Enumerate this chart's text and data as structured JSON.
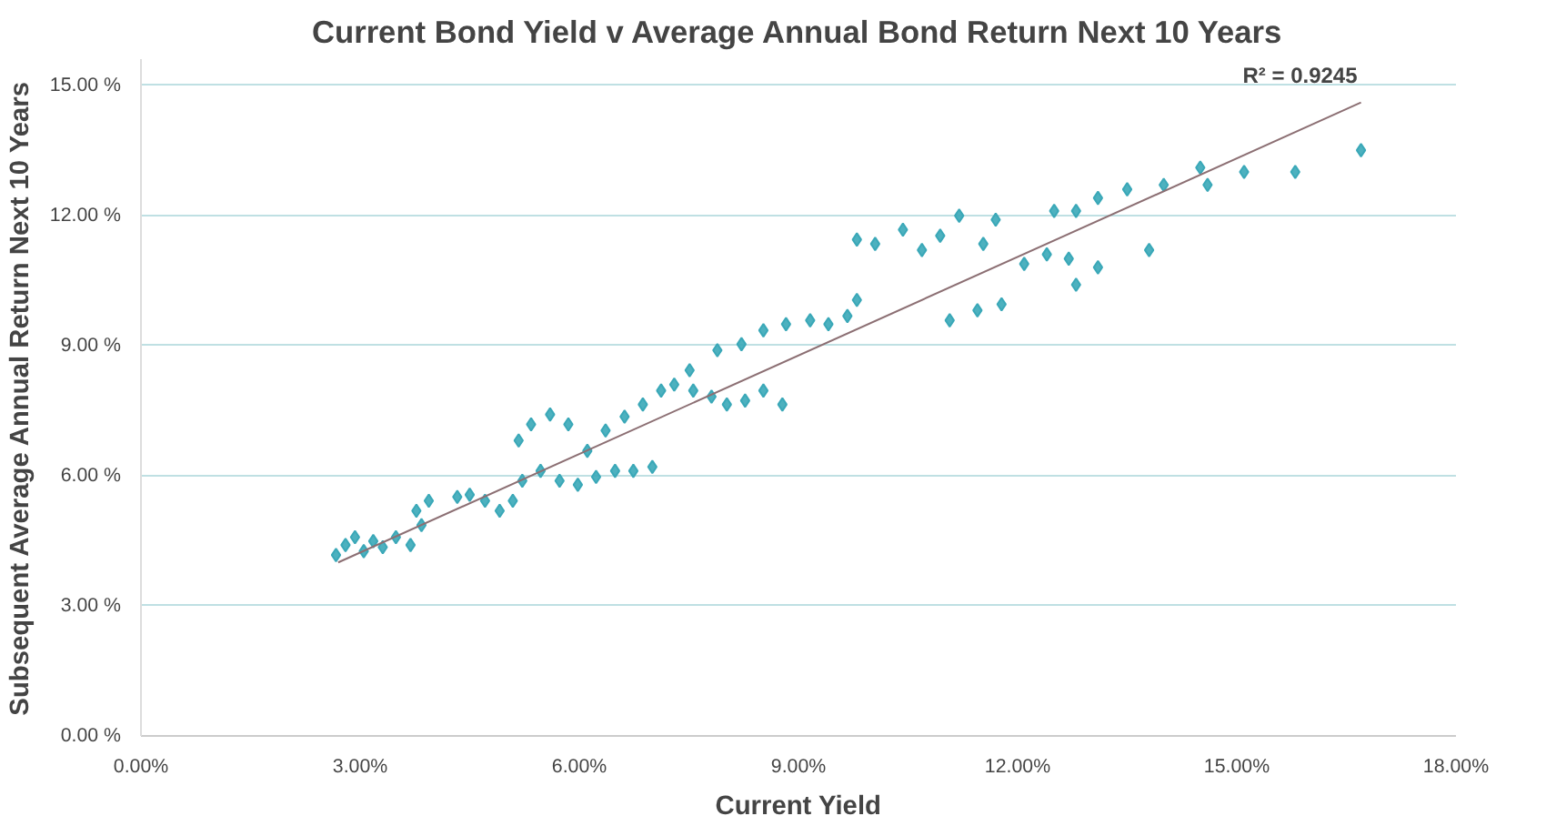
{
  "chart_data": {
    "type": "scatter",
    "title": "Current Bond Yield v Average Annual Bond Return Next 10 Years",
    "xlabel": "Current Yield",
    "ylabel": "Subsequent Average Annual Return Next 10 Years",
    "annotations": [
      {
        "text": "R² = 0.9245",
        "x": 16.7,
        "y": 14.6
      }
    ],
    "xlim": [
      0,
      18
    ],
    "ylim": [
      0,
      15.6
    ],
    "xticks": [
      {
        "value": 0,
        "label": "0.00%"
      },
      {
        "value": 3,
        "label": "3.00%"
      },
      {
        "value": 6,
        "label": "6.00%"
      },
      {
        "value": 9,
        "label": "9.00%"
      },
      {
        "value": 12,
        "label": "12.00%"
      },
      {
        "value": 15,
        "label": "15.00%"
      },
      {
        "value": 18,
        "label": "18.00%"
      }
    ],
    "yticks": [
      {
        "value": 0,
        "label": "0.00 %"
      },
      {
        "value": 3,
        "label": "3.00 %"
      },
      {
        "value": 6,
        "label": "6.00 %"
      },
      {
        "value": 9,
        "label": "9.00 %"
      },
      {
        "value": 12,
        "label": "12.00 %"
      },
      {
        "value": 15,
        "label": "15.00 %"
      }
    ],
    "grid": "y",
    "marker": "diamond",
    "series": [
      {
        "color": "#3aa8b8",
        "x": [
          2.67,
          2.8,
          2.93,
          3.05,
          3.18,
          3.31,
          3.49,
          3.69,
          3.84,
          3.77,
          3.94,
          4.33,
          4.5,
          4.71,
          4.91,
          5.09,
          5.22,
          5.17,
          5.34,
          5.6,
          5.85,
          5.47,
          5.73,
          5.98,
          6.23,
          6.49,
          6.74,
          7.0,
          6.11,
          6.36,
          6.62,
          6.87,
          7.12,
          7.3,
          7.56,
          7.81,
          8.02,
          8.27,
          8.52,
          8.78,
          7.51,
          7.89,
          8.22,
          8.52,
          8.83,
          9.16,
          9.41,
          9.67,
          9.8,
          9.8,
          10.05,
          10.43,
          10.69,
          10.94,
          11.2,
          11.53,
          11.7,
          11.07,
          11.45,
          11.78,
          12.09,
          12.5,
          12.8,
          13.1,
          13.5,
          14.0,
          14.5,
          14.6,
          15.1,
          12.4,
          12.7,
          13.1,
          12.8,
          13.8,
          15.8,
          16.7
        ],
        "values": [
          4.17,
          4.4,
          4.58,
          4.26,
          4.49,
          4.35,
          4.58,
          4.4,
          4.86,
          5.19,
          5.42,
          5.51,
          5.56,
          5.42,
          5.19,
          5.42,
          5.88,
          6.81,
          7.18,
          7.41,
          7.18,
          6.11,
          5.88,
          5.79,
          5.97,
          6.11,
          6.11,
          6.2,
          6.57,
          7.04,
          7.36,
          7.64,
          7.96,
          8.1,
          7.96,
          7.82,
          7.64,
          7.73,
          7.96,
          7.64,
          8.43,
          8.89,
          9.03,
          9.35,
          9.49,
          9.58,
          9.49,
          9.68,
          10.05,
          11.44,
          11.34,
          11.67,
          11.2,
          11.53,
          11.99,
          11.34,
          11.9,
          9.58,
          9.81,
          9.95,
          10.88,
          12.1,
          12.1,
          12.4,
          12.6,
          12.7,
          13.1,
          12.7,
          13.0,
          11.1,
          11.0,
          10.8,
          10.4,
          11.2,
          13.0,
          13.5
        ]
      },
      {
        "type": "line",
        "color": "#8c6f73",
        "marker": "none",
        "x": [
          2.7,
          16.7
        ],
        "values": [
          4.0,
          14.6
        ]
      }
    ]
  }
}
